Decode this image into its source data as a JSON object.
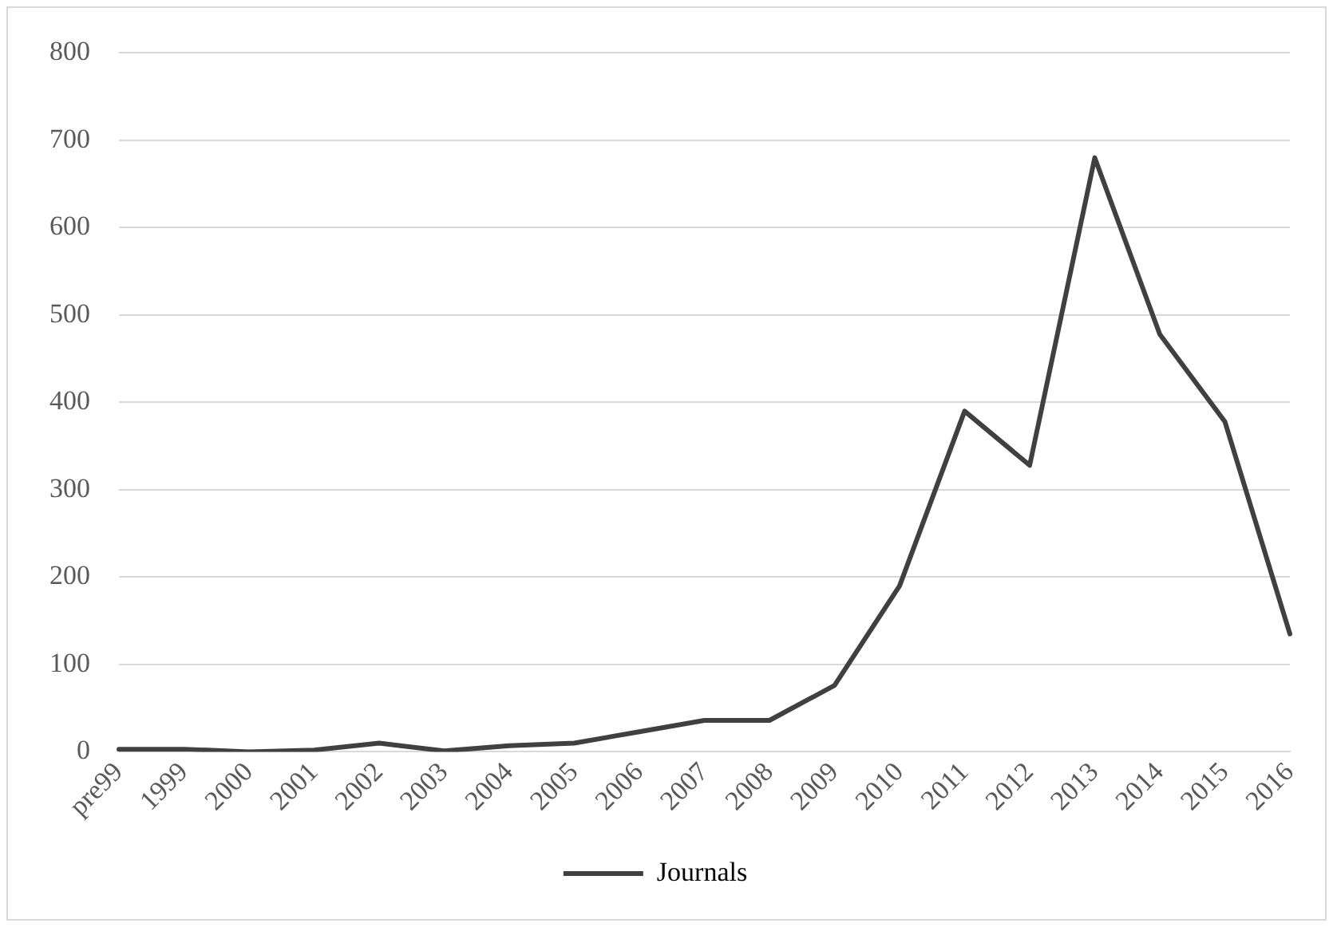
{
  "chart_data": {
    "type": "line",
    "categories": [
      "pre99",
      "1999",
      "2000",
      "2001",
      "2002",
      "2003",
      "2004",
      "2005",
      "2006",
      "2007",
      "2008",
      "2009",
      "2010",
      "2011",
      "2012",
      "2013",
      "2014",
      "2015",
      "2016"
    ],
    "series": [
      {
        "name": "Journals",
        "color": "#404040",
        "values": [
          3,
          3,
          0,
          2,
          10,
          1,
          7,
          10,
          23,
          36,
          36,
          76,
          190,
          390,
          328,
          680,
          478,
          378,
          135
        ]
      }
    ],
    "ylim": [
      0,
      800
    ],
    "yticks": [
      0,
      100,
      200,
      300,
      400,
      500,
      600,
      700,
      800
    ],
    "grid": "y",
    "legend": "bottom",
    "marker": "none",
    "line_style": "solid"
  }
}
